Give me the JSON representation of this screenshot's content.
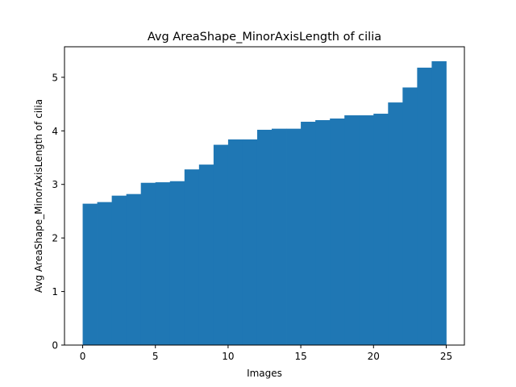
{
  "chart_data": {
    "type": "bar",
    "title": "Avg AreaShape_MinorAxisLength of cilia",
    "xlabel": "Images",
    "ylabel": "Avg AreaShape_MinorAxisLength of cilia",
    "xlim": [
      -1.25,
      26.25
    ],
    "ylim": [
      0,
      5.57
    ],
    "xticks": [
      0,
      5,
      10,
      15,
      20,
      25
    ],
    "yticks": [
      0,
      1,
      2,
      3,
      4,
      5
    ],
    "bar_color": "#1f77b4",
    "grid": false,
    "legend": false,
    "x": [
      0,
      1,
      2,
      3,
      4,
      5,
      6,
      7,
      8,
      9,
      10,
      11,
      12,
      13,
      14,
      15,
      16,
      17,
      18,
      19,
      20,
      21,
      22,
      23,
      24
    ],
    "values": [
      2.64,
      2.67,
      2.79,
      2.82,
      3.03,
      3.04,
      3.06,
      3.28,
      3.37,
      3.74,
      3.84,
      3.84,
      4.02,
      4.04,
      4.04,
      4.17,
      4.2,
      4.23,
      4.29,
      4.29,
      4.32,
      4.53,
      4.81,
      5.18,
      5.3
    ]
  }
}
